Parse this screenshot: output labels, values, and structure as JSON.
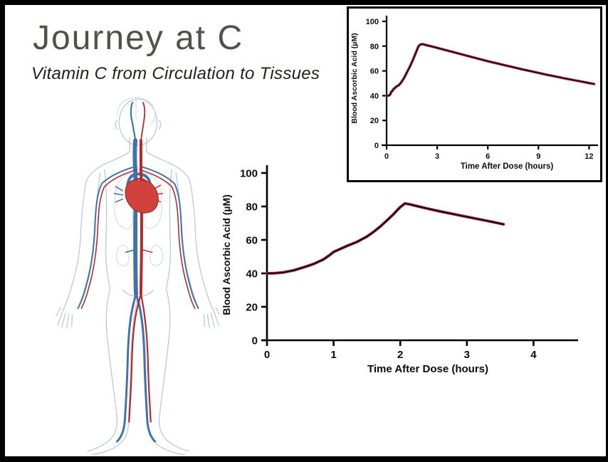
{
  "slide": {
    "title": "Journey at C",
    "subtitle": "Vitamin C from Circulation to Tissues",
    "background_color": "#ffffff",
    "frame_color": "#000000",
    "title_color": "#50524a",
    "subtitle_color": "#22221b"
  },
  "illustration": {
    "label": "Human circulatory system figure",
    "vein_color": "#3e74ab",
    "artery_color": "#b2282c",
    "heart_color": "#d0413c",
    "outline_color": "#c3cbd2",
    "organ_outline_color": "#d6dde3"
  },
  "chart_data": [
    {
      "type": "line",
      "title": "",
      "xlabel": "Time After Dose (hours)",
      "ylabel": "Blood Ascorbic Acid (µM)",
      "xlim": [
        0,
        4.7
      ],
      "ylim": [
        0,
        105
      ],
      "xticks": [
        0,
        1,
        2,
        3,
        4
      ],
      "yticks": [
        0,
        20,
        40,
        60,
        80,
        100
      ],
      "grid": false,
      "legend_position": "none",
      "line_color": "#1b0407",
      "line_edge_color": "#a23049",
      "points": [
        [
          0,
          40
        ],
        [
          0.12,
          40.1
        ],
        [
          0.25,
          40.6
        ],
        [
          0.4,
          41.8
        ],
        [
          0.55,
          43.6
        ],
        [
          0.7,
          45.6
        ],
        [
          0.85,
          48.4
        ],
        [
          0.95,
          51.2
        ],
        [
          1.0,
          52.8
        ],
        [
          1.1,
          54.6
        ],
        [
          1.2,
          56.4
        ],
        [
          1.35,
          58.8
        ],
        [
          1.5,
          62
        ],
        [
          1.6,
          64.8
        ],
        [
          1.7,
          68
        ],
        [
          1.8,
          71.6
        ],
        [
          1.9,
          75.4
        ],
        [
          2.0,
          79.6
        ],
        [
          2.07,
          81.8
        ],
        [
          2.15,
          81.2
        ],
        [
          2.25,
          80.2
        ],
        [
          2.4,
          78.8
        ],
        [
          2.6,
          77
        ],
        [
          2.8,
          75.4
        ],
        [
          3.0,
          73.8
        ],
        [
          3.2,
          72.2
        ],
        [
          3.4,
          70.6
        ],
        [
          3.55,
          69.3
        ]
      ]
    },
    {
      "type": "line",
      "title": "",
      "xlabel": "Time After Dose (hours)",
      "ylabel": "Blood Ascorbic Acid (µM)",
      "xlim": [
        0,
        12.9
      ],
      "ylim": [
        0,
        105
      ],
      "xticks": [
        0,
        3,
        6,
        9,
        12
      ],
      "yticks": [
        0,
        20,
        40,
        60,
        80,
        100
      ],
      "grid": false,
      "legend_position": "none",
      "line_color": "#1b0407",
      "line_edge_color": "#a23049",
      "points": [
        [
          0,
          39.8
        ],
        [
          0.15,
          40.2
        ],
        [
          0.22,
          41
        ],
        [
          0.28,
          43.2
        ],
        [
          0.35,
          43.8
        ],
        [
          0.42,
          45.6
        ],
        [
          0.5,
          46.2
        ],
        [
          0.6,
          47.6
        ],
        [
          0.7,
          48.2
        ],
        [
          0.8,
          49.6
        ],
        [
          0.9,
          51.4
        ],
        [
          1.0,
          53.5
        ],
        [
          1.1,
          56
        ],
        [
          1.25,
          60
        ],
        [
          1.4,
          64
        ],
        [
          1.55,
          68.5
        ],
        [
          1.7,
          73.5
        ],
        [
          1.8,
          77
        ],
        [
          1.9,
          80
        ],
        [
          2.0,
          81.3
        ],
        [
          2.15,
          81.6
        ],
        [
          2.3,
          81
        ],
        [
          2.6,
          80
        ],
        [
          3.0,
          78.6
        ],
        [
          3.5,
          76.8
        ],
        [
          4.0,
          75
        ],
        [
          4.5,
          73.2
        ],
        [
          5.0,
          71.4
        ],
        [
          5.5,
          69.6
        ],
        [
          6.0,
          67.8
        ],
        [
          6.5,
          66.2
        ],
        [
          7.0,
          64.6
        ],
        [
          7.5,
          63
        ],
        [
          8.0,
          61.4
        ],
        [
          8.5,
          59.9
        ],
        [
          9.0,
          58.4
        ],
        [
          9.5,
          56.9
        ],
        [
          10.0,
          55.5
        ],
        [
          10.5,
          54.1
        ],
        [
          11.0,
          52.8
        ],
        [
          11.5,
          51.5
        ],
        [
          12.0,
          50.2
        ],
        [
          12.3,
          49.4
        ]
      ]
    }
  ]
}
